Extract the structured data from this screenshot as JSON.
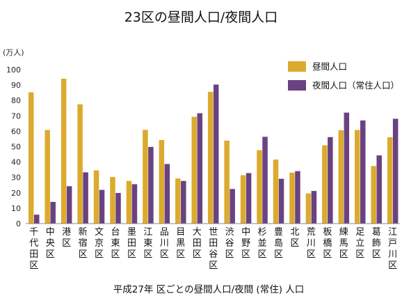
{
  "chart_data": {
    "type": "bar",
    "title": "23区の昼間人口/夜間人口",
    "caption": "平成27年 区ごとの昼間人口/夜間 (常住) 人口",
    "ylabel": "(万人)",
    "ylim": [
      0,
      100
    ],
    "yticks": [
      0,
      10,
      20,
      30,
      40,
      50,
      60,
      70,
      80,
      90,
      100
    ],
    "grid": false,
    "legend_position": "top-right",
    "categories": [
      "千代田区",
      "中央区",
      "港区",
      "新宿区",
      "文京区",
      "台東区",
      "墨田区",
      "江東区",
      "品川区",
      "目黒区",
      "大田区",
      "世田谷区",
      "渋谷区",
      "中野区",
      "杉並区",
      "豊島区",
      "北区",
      "荒川区",
      "板橋区",
      "練馬区",
      "足立区",
      "葛飾区",
      "江戸川区"
    ],
    "series": [
      {
        "name": "昼間人口",
        "color": "#dcaa2e",
        "values": [
          85.3,
          60.8,
          94.1,
          77.5,
          34.6,
          30.3,
          27.7,
          60.9,
          54.3,
          29.3,
          69.4,
          85.6,
          53.9,
          31.4,
          47.7,
          41.6,
          33.1,
          19.6,
          50.8,
          60.6,
          60.8,
          37.4,
          56.1
        ]
      },
      {
        "name": "夜間人口（常住人口）",
        "color": "#6a4282",
        "values": [
          5.8,
          14.1,
          24.3,
          33.3,
          21.9,
          19.9,
          25.6,
          49.8,
          38.7,
          27.7,
          71.7,
          90.3,
          22.5,
          32.8,
          56.4,
          29.1,
          34.1,
          21.2,
          56.2,
          72.1,
          67.0,
          44.3,
          68.1
        ]
      }
    ]
  }
}
